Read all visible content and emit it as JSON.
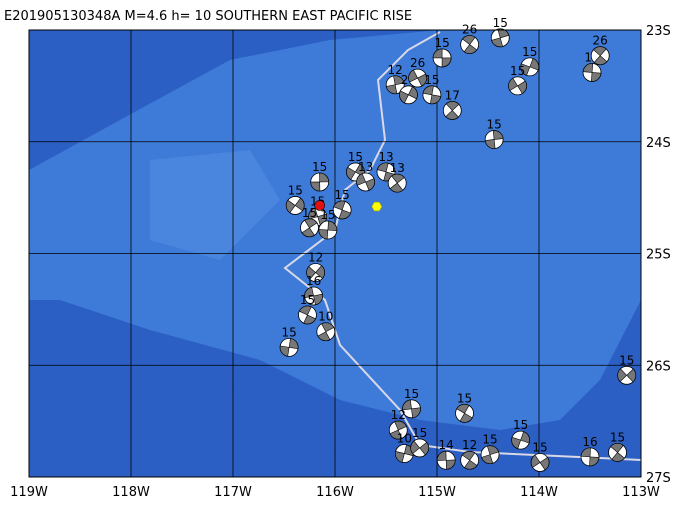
{
  "title": "E201905130348A  M=4.6  h= 10 SOUTHERN EAST PACIFIC RISE",
  "lon_ticks": [
    {
      "value": 119,
      "label": "119W"
    },
    {
      "value": 118,
      "label": "118W"
    },
    {
      "value": 117,
      "label": "117W"
    },
    {
      "value": 116,
      "label": "116W"
    },
    {
      "value": 115,
      "label": "115W"
    },
    {
      "value": 114,
      "label": "114W"
    },
    {
      "value": 113,
      "label": "113W"
    }
  ],
  "lat_ticks": [
    {
      "value": 23,
      "label": "23S"
    },
    {
      "value": 24,
      "label": "24S"
    },
    {
      "value": 25,
      "label": "25S"
    },
    {
      "value": 26,
      "label": "26S"
    },
    {
      "value": 27,
      "label": "27S"
    }
  ],
  "epicenter": {
    "lon": 116.15,
    "lat": 24.57
  },
  "centroid": {
    "lon": 115.59,
    "lat": 24.58
  },
  "events": [
    {
      "lon": 114.95,
      "lat": 23.25,
      "depth": 15
    },
    {
      "lon": 114.68,
      "lat": 23.13,
      "depth": 26
    },
    {
      "lon": 114.38,
      "lat": 23.07,
      "depth": 15
    },
    {
      "lon": 114.09,
      "lat": 23.33,
      "depth": 15
    },
    {
      "lon": 114.21,
      "lat": 23.5,
      "depth": 15
    },
    {
      "lon": 113.48,
      "lat": 23.38,
      "depth": 15
    },
    {
      "lon": 113.4,
      "lat": 23.23,
      "depth": 26
    },
    {
      "lon": 115.41,
      "lat": 23.49,
      "depth": 12
    },
    {
      "lon": 115.28,
      "lat": 23.58,
      "depth": 21
    },
    {
      "lon": 115.19,
      "lat": 23.43,
      "depth": 26
    },
    {
      "lon": 115.05,
      "lat": 23.58,
      "depth": 15
    },
    {
      "lon": 114.85,
      "lat": 23.72,
      "depth": 17
    },
    {
      "lon": 114.44,
      "lat": 23.98,
      "depth": 15
    },
    {
      "lon": 115.8,
      "lat": 24.27,
      "depth": 15
    },
    {
      "lon": 115.7,
      "lat": 24.36,
      "depth": 13
    },
    {
      "lon": 115.5,
      "lat": 24.27,
      "depth": 13
    },
    {
      "lon": 115.39,
      "lat": 24.37,
      "depth": 13
    },
    {
      "lon": 116.15,
      "lat": 24.36,
      "depth": 15
    },
    {
      "lon": 116.39,
      "lat": 24.57,
      "depth": 15
    },
    {
      "lon": 116.17,
      "lat": 24.67,
      "depth": 15
    },
    {
      "lon": 115.93,
      "lat": 24.61,
      "depth": 15
    },
    {
      "lon": 116.25,
      "lat": 24.77,
      "depth": 15
    },
    {
      "lon": 116.07,
      "lat": 24.79,
      "depth": 15
    },
    {
      "lon": 116.19,
      "lat": 25.17,
      "depth": 12
    },
    {
      "lon": 116.21,
      "lat": 25.38,
      "depth": 16
    },
    {
      "lon": 116.27,
      "lat": 25.55,
      "depth": 15
    },
    {
      "lon": 116.09,
      "lat": 25.7,
      "depth": 10
    },
    {
      "lon": 116.45,
      "lat": 25.84,
      "depth": 15
    },
    {
      "lon": 113.14,
      "lat": 26.09,
      "depth": 15
    },
    {
      "lon": 115.25,
      "lat": 26.39,
      "depth": 15
    },
    {
      "lon": 114.73,
      "lat": 26.43,
      "depth": 15
    },
    {
      "lon": 115.38,
      "lat": 26.58,
      "depth": 12
    },
    {
      "lon": 115.32,
      "lat": 26.79,
      "depth": 10
    },
    {
      "lon": 115.17,
      "lat": 26.74,
      "depth": 15
    },
    {
      "lon": 114.91,
      "lat": 26.85,
      "depth": 14
    },
    {
      "lon": 114.68,
      "lat": 26.85,
      "depth": 12
    },
    {
      "lon": 114.48,
      "lat": 26.8,
      "depth": 15
    },
    {
      "lon": 114.18,
      "lat": 26.67,
      "depth": 15
    },
    {
      "lon": 113.99,
      "lat": 26.87,
      "depth": 15
    },
    {
      "lon": 113.5,
      "lat": 26.82,
      "depth": 16
    },
    {
      "lon": 113.23,
      "lat": 26.78,
      "depth": 15
    }
  ]
}
